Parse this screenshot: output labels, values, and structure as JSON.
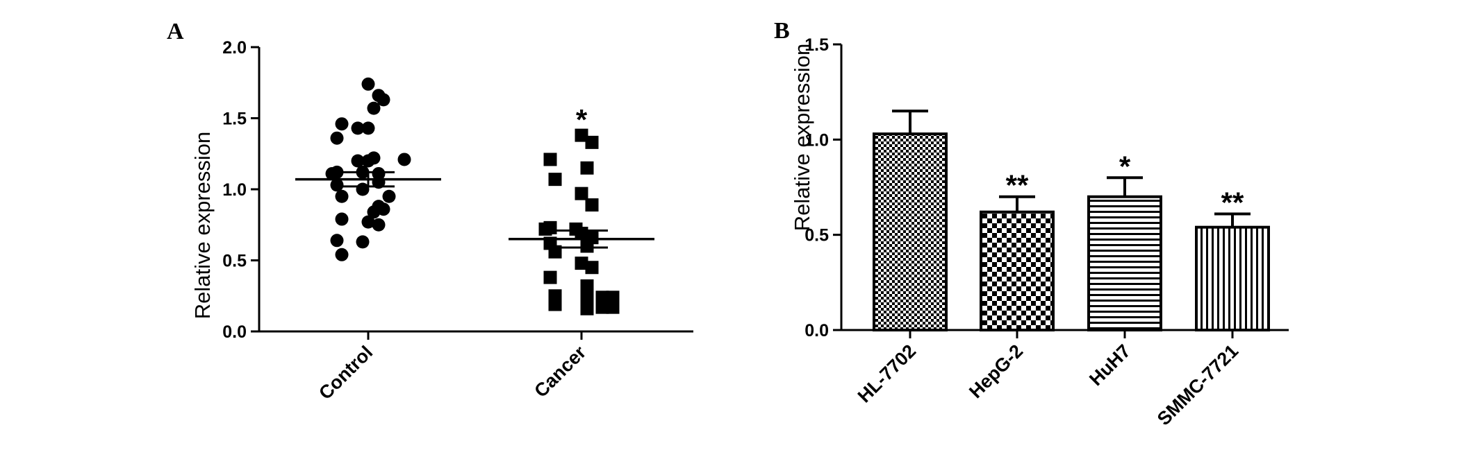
{
  "chart_data": [
    {
      "panel": "A",
      "type": "scatter",
      "ylabel": "Relative expression",
      "ylim": [
        0,
        2.0
      ],
      "yticks": [
        "0.0",
        "0.5",
        "1.0",
        "1.5",
        "2.0"
      ],
      "categories": [
        "Control",
        "Cancer"
      ],
      "series": [
        {
          "category": "Control",
          "marker": "circle",
          "values": [
            1.74,
            1.66,
            1.63,
            1.57,
            1.46,
            1.43,
            1.43,
            1.36,
            1.22,
            1.21,
            1.2,
            1.2,
            1.12,
            1.12,
            1.11,
            1.11,
            1.05,
            1.03,
            1.0,
            0.95,
            0.95,
            0.88,
            0.86,
            0.84,
            0.79,
            0.77,
            0.75,
            0.64,
            0.63,
            0.54
          ],
          "mean": 1.07,
          "sem": 0.05,
          "significance": ""
        },
        {
          "category": "Cancer",
          "marker": "square",
          "values": [
            1.38,
            1.33,
            1.21,
            1.15,
            1.07,
            0.97,
            0.89,
            0.73,
            0.72,
            0.72,
            0.69,
            0.66,
            0.62,
            0.6,
            0.56,
            0.48,
            0.45,
            0.38,
            0.32,
            0.25,
            0.24,
            0.24,
            0.23,
            0.22,
            0.19,
            0.17,
            0.17,
            0.16
          ],
          "mean": 0.65,
          "sem": 0.06,
          "significance": "*"
        }
      ]
    },
    {
      "panel": "B",
      "type": "bar",
      "ylabel": "Relative expression",
      "ylim": [
        0,
        1.5
      ],
      "yticks": [
        "0.0",
        "0.5",
        "1.0",
        "1.5"
      ],
      "categories": [
        "HL-7702",
        "HepG-2",
        "HuH7",
        "SMMC-7721"
      ],
      "values": [
        1.03,
        0.62,
        0.7,
        0.54
      ],
      "errors": [
        0.12,
        0.08,
        0.1,
        0.07
      ],
      "patterns": [
        "checker-fine",
        "checker-large",
        "horizontal-lines",
        "vertical-lines"
      ],
      "significance": [
        "",
        "**",
        "*",
        "**"
      ]
    }
  ]
}
